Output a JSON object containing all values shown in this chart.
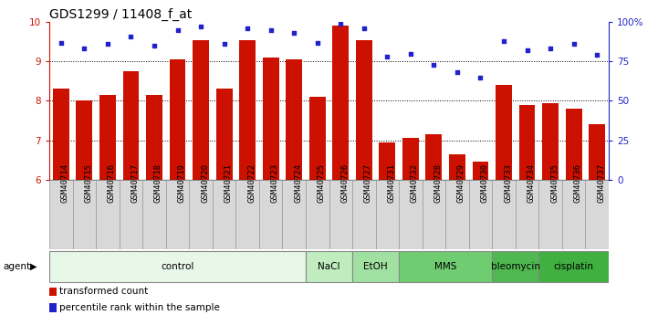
{
  "title": "GDS1299 / 11408_f_at",
  "samples": [
    "GSM40714",
    "GSM40715",
    "GSM40716",
    "GSM40717",
    "GSM40718",
    "GSM40719",
    "GSM40720",
    "GSM40721",
    "GSM40722",
    "GSM40723",
    "GSM40724",
    "GSM40725",
    "GSM40726",
    "GSM40727",
    "GSM40731",
    "GSM40732",
    "GSM40728",
    "GSM40729",
    "GSM40730",
    "GSM40733",
    "GSM40734",
    "GSM40735",
    "GSM40736",
    "GSM40737"
  ],
  "bar_values": [
    8.3,
    8.0,
    8.15,
    8.75,
    8.15,
    9.05,
    9.55,
    8.3,
    9.55,
    9.1,
    9.05,
    8.1,
    9.9,
    9.55,
    6.95,
    7.05,
    7.15,
    6.65,
    6.45,
    8.4,
    7.9,
    7.95,
    7.8,
    7.4
  ],
  "dot_values": [
    87,
    83,
    86,
    91,
    85,
    95,
    97,
    86,
    96,
    95,
    93,
    87,
    99,
    96,
    78,
    80,
    73,
    68,
    65,
    88,
    82,
    83,
    86,
    79
  ],
  "ylim_left": [
    6,
    10
  ],
  "ylim_right": [
    0,
    100
  ],
  "yticks_left": [
    6,
    7,
    8,
    9,
    10
  ],
  "yticks_right": [
    0,
    25,
    50,
    75,
    100
  ],
  "ytick_labels_right": [
    "0",
    "25",
    "50",
    "75",
    "100%"
  ],
  "bar_color": "#cc1100",
  "dot_color": "#2222cc",
  "bar_width": 0.7,
  "groups": [
    {
      "label": "control",
      "start": 0,
      "end": 11,
      "color": "#e8f8e8"
    },
    {
      "label": "NaCl",
      "start": 11,
      "end": 13,
      "color": "#c0ecc0"
    },
    {
      "label": "EtOH",
      "start": 13,
      "end": 15,
      "color": "#a0e0a0"
    },
    {
      "label": "MMS",
      "start": 15,
      "end": 19,
      "color": "#70cc70"
    },
    {
      "label": "bleomycin",
      "start": 19,
      "end": 21,
      "color": "#50b850"
    },
    {
      "label": "cisplatin",
      "start": 21,
      "end": 24,
      "color": "#40b040"
    }
  ],
  "legend_items": [
    {
      "label": "transformed count",
      "color": "#cc1100"
    },
    {
      "label": "percentile rank within the sample",
      "color": "#2222cc"
    }
  ],
  "grid_yticks": [
    7,
    8,
    9
  ],
  "grid_color": "black",
  "background_color": "#ffffff",
  "tick_label_color_left": "#cc1100",
  "tick_label_color_right": "#2222cc",
  "agent_label": "agent",
  "tick_fontsize": 7.5,
  "title_fontsize": 10,
  "xtick_fontsize": 6.5,
  "group_fontsize": 7.5,
  "legend_fontsize": 7.5
}
